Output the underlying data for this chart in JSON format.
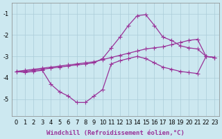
{
  "xlabel": "Windchill (Refroidissement éolien,°C)",
  "background_color": "#cce8f0",
  "grid_color": "#aaccd8",
  "line_color": "#993399",
  "x_hours": [
    0,
    1,
    2,
    3,
    4,
    5,
    6,
    7,
    8,
    9,
    10,
    11,
    12,
    13,
    14,
    15,
    16,
    17,
    18,
    19,
    20,
    21,
    22,
    23
  ],
  "line_top_y": [
    -3.7,
    -3.7,
    -3.65,
    -3.6,
    -3.55,
    -3.5,
    -3.45,
    -3.4,
    -3.35,
    -3.3,
    -3.1,
    -2.6,
    -2.1,
    -1.55,
    -1.1,
    -1.05,
    -1.55,
    -2.1,
    -2.25,
    -2.5,
    -2.6,
    -2.65,
    -3.0,
    -3.05
  ],
  "line_mid_y": [
    -3.7,
    -3.65,
    -3.6,
    -3.55,
    -3.5,
    -3.45,
    -3.4,
    -3.35,
    -3.3,
    -3.25,
    -3.15,
    -3.05,
    -2.95,
    -2.85,
    -2.75,
    -2.65,
    -2.6,
    -2.55,
    -2.45,
    -2.35,
    -2.25,
    -2.2,
    -3.0,
    -3.05
  ],
  "line_bot_y": [
    -3.7,
    -3.75,
    -3.7,
    -3.65,
    -4.3,
    -4.65,
    -4.85,
    -5.15,
    -5.15,
    -4.85,
    -4.55,
    -3.35,
    -3.2,
    -3.1,
    -3.0,
    -3.1,
    -3.3,
    -3.5,
    -3.6,
    -3.7,
    -3.75,
    -3.8,
    -3.0,
    -3.05
  ],
  "ylim": [
    -5.8,
    -0.5
  ],
  "xlim": [
    -0.5,
    23.5
  ],
  "yticks": [
    -5,
    -4,
    -3,
    -2,
    -1
  ],
  "xticks": [
    0,
    1,
    2,
    3,
    4,
    5,
    6,
    7,
    8,
    9,
    10,
    11,
    12,
    13,
    14,
    15,
    16,
    17,
    18,
    19,
    20,
    21,
    22,
    23
  ],
  "fontsize_axis": 6,
  "fontsize_xlabel": 6.5
}
